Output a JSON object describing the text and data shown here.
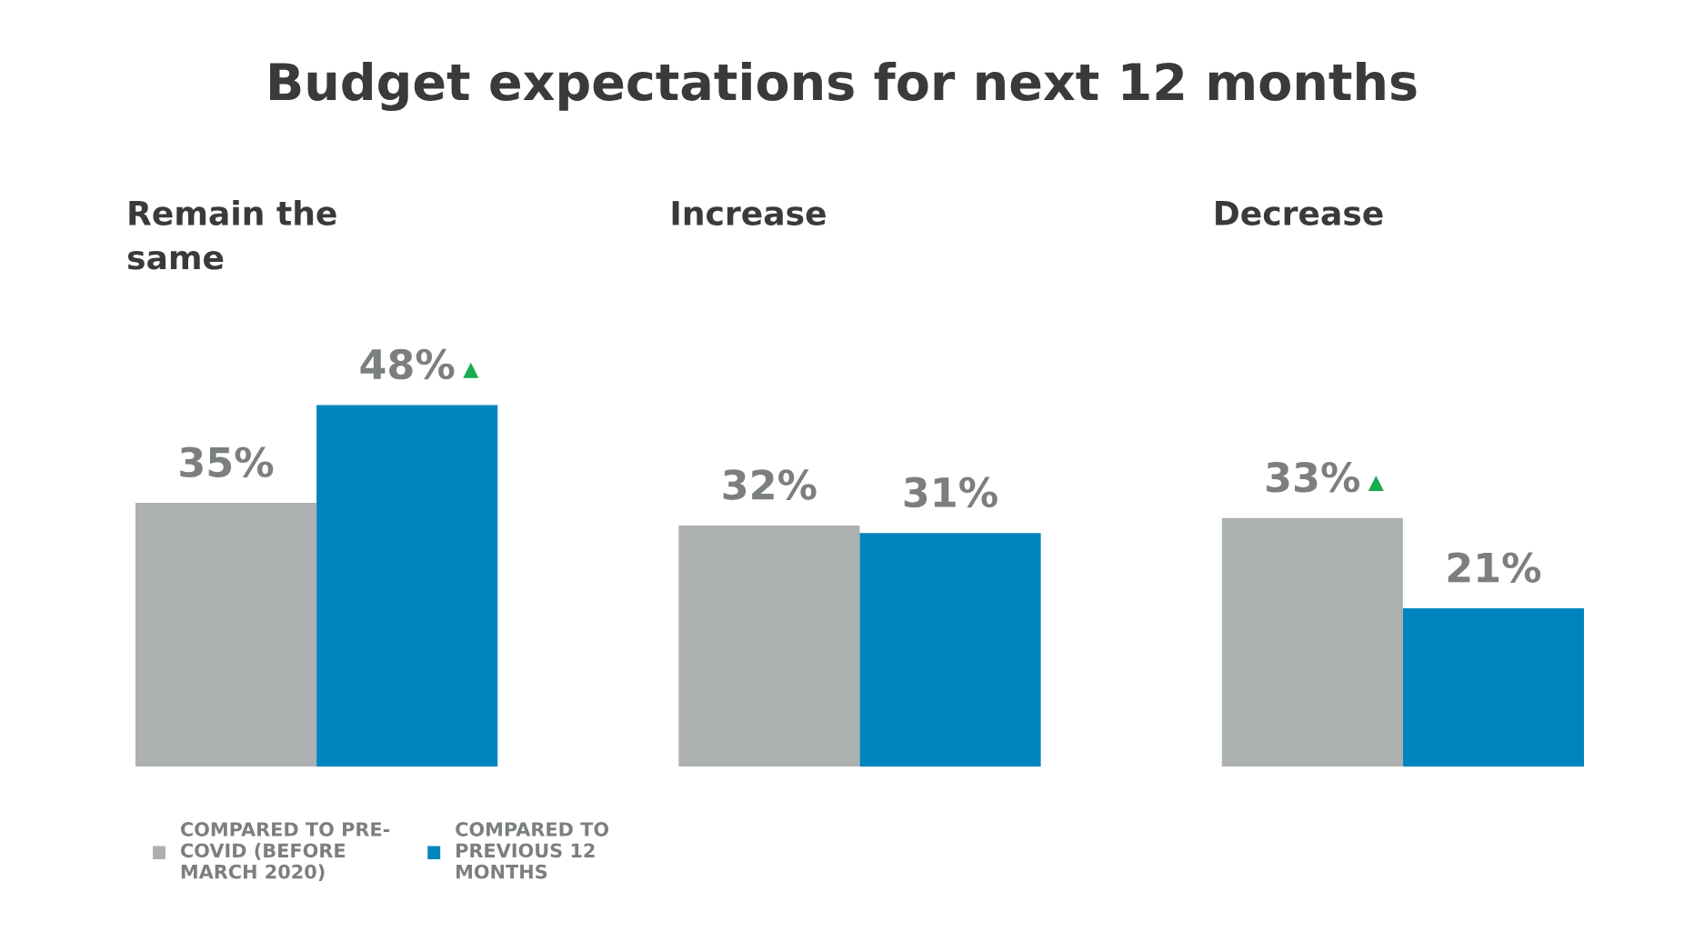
{
  "chart_data": {
    "type": "bar",
    "title": "Budget expectations for next 12 months",
    "categories": [
      "Remain the\nsame",
      "Increase",
      "Decrease"
    ],
    "series": [
      {
        "name": "COMPARED TO PRE-\nCOVID (BEFORE\nMARCH 2020)",
        "color": "#adb0b1",
        "values": [
          35,
          32,
          33
        ],
        "value_labels": [
          "35%",
          "32%",
          "33% ▲"
        ]
      },
      {
        "name": "COMPARED TO\nPREVIOUS 12\nMONTHS",
        "color": "#0085bf",
        "values": [
          48,
          31,
          21
        ],
        "value_labels": [
          "48% ▲",
          "31%",
          "21%"
        ]
      }
    ],
    "legend": "bottom left"
  }
}
